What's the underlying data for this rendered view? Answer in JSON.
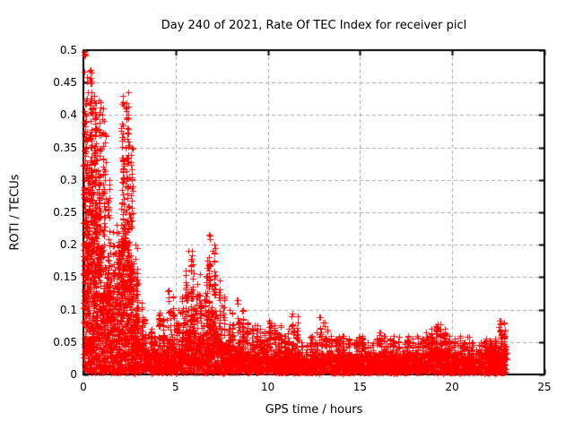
{
  "chart_data": {
    "type": "scatter",
    "title": "Day 240 of 2021, Rate Of TEC Index for receiver picl",
    "xlabel": "GPS time / hours",
    "ylabel": "ROTI / TECUs",
    "xlim": [
      0,
      25
    ],
    "ylim": [
      0,
      0.5
    ],
    "xticks": [
      0,
      5,
      10,
      15,
      20,
      25
    ],
    "yticks": [
      0,
      0.05,
      0.1,
      0.15,
      0.2,
      0.25,
      0.3,
      0.35,
      0.4,
      0.45,
      0.5
    ],
    "xtick_labels": [
      "0",
      "5",
      "10",
      "15",
      "20",
      "25"
    ],
    "ytick_labels": [
      "0",
      "0.05",
      "0.1",
      "0.15",
      "0.2",
      "0.25",
      "0.3",
      "0.35",
      "0.4",
      "0.45",
      "0.5"
    ],
    "grid": "dashed gray at every major tick",
    "legend": "none",
    "marker": "plus",
    "colors": {
      "marker": "#ff0000",
      "grid": "#a8a8a8",
      "axis": "#000000",
      "background": "#ffffff",
      "text": "#000000"
    },
    "data_start_hour": 0,
    "data_end_hour": 22.95,
    "envelope": {
      "note": "dense scatter summarized per 0.25 h bin: top of solid red band and max spike value (ROTI/TECUs)",
      "bin_width_hours": 0.25,
      "hours": [
        0,
        0.25,
        0.5,
        0.75,
        1,
        1.25,
        1.5,
        1.75,
        2,
        2.25,
        2.5,
        2.75,
        3,
        3.25,
        3.5,
        3.75,
        4,
        4.25,
        4.5,
        4.75,
        5,
        5.25,
        5.5,
        5.75,
        6,
        6.25,
        6.5,
        6.75,
        7,
        7.25,
        7.5,
        7.75,
        8,
        8.25,
        8.5,
        8.75,
        9,
        9.25,
        9.5,
        9.75,
        10,
        10.25,
        10.5,
        10.75,
        11,
        11.25,
        11.5,
        11.75,
        12,
        12.25,
        12.5,
        12.75,
        13,
        13.25,
        13.5,
        13.75,
        14,
        14.25,
        14.5,
        14.75,
        15,
        15.25,
        15.5,
        15.75,
        16,
        16.25,
        16.5,
        16.75,
        17,
        17.25,
        17.5,
        17.75,
        18,
        18.25,
        18.5,
        18.75,
        19,
        19.25,
        19.5,
        19.75,
        20,
        20.25,
        20.5,
        20.75,
        21,
        21.25,
        21.5,
        21.75,
        22,
        22.25,
        22.5,
        22.75
      ],
      "dense_band_top": [
        0.3,
        0.32,
        0.26,
        0.2,
        0.17,
        0.15,
        0.12,
        0.14,
        0.22,
        0.24,
        0.17,
        0.09,
        0.05,
        0.04,
        0.035,
        0.03,
        0.04,
        0.04,
        0.055,
        0.05,
        0.045,
        0.05,
        0.07,
        0.085,
        0.06,
        0.065,
        0.08,
        0.1,
        0.095,
        0.065,
        0.05,
        0.045,
        0.04,
        0.05,
        0.045,
        0.035,
        0.03,
        0.035,
        0.03,
        0.035,
        0.03,
        0.03,
        0.035,
        0.03,
        0.03,
        0.04,
        0.035,
        0.025,
        0.022,
        0.03,
        0.03,
        0.035,
        0.03,
        0.03,
        0.028,
        0.03,
        0.032,
        0.03,
        0.028,
        0.03,
        0.032,
        0.03,
        0.028,
        0.03,
        0.035,
        0.032,
        0.03,
        0.035,
        0.032,
        0.03,
        0.035,
        0.032,
        0.035,
        0.03,
        0.035,
        0.04,
        0.042,
        0.04,
        0.038,
        0.03,
        0.03,
        0.035,
        0.03,
        0.032,
        0.028,
        0.03,
        0.035,
        0.04,
        0.04,
        0.042,
        0.046,
        0.042
      ],
      "max": [
        0.497,
        0.47,
        0.43,
        0.42,
        0.41,
        0.3,
        0.22,
        0.23,
        0.42,
        0.435,
        0.35,
        0.2,
        0.11,
        0.085,
        0.07,
        0.06,
        0.095,
        0.085,
        0.13,
        0.12,
        0.1,
        0.12,
        0.16,
        0.19,
        0.14,
        0.155,
        0.175,
        0.215,
        0.2,
        0.145,
        0.12,
        0.1,
        0.095,
        0.115,
        0.1,
        0.08,
        0.07,
        0.076,
        0.07,
        0.066,
        0.08,
        0.076,
        0.073,
        0.06,
        0.07,
        0.094,
        0.09,
        0.05,
        0.045,
        0.06,
        0.065,
        0.088,
        0.08,
        0.06,
        0.055,
        0.058,
        0.06,
        0.055,
        0.05,
        0.058,
        0.06,
        0.05,
        0.048,
        0.055,
        0.065,
        0.06,
        0.055,
        0.06,
        0.058,
        0.05,
        0.06,
        0.055,
        0.06,
        0.055,
        0.065,
        0.07,
        0.075,
        0.078,
        0.07,
        0.06,
        0.055,
        0.06,
        0.05,
        0.058,
        0.05,
        0.045,
        0.05,
        0.055,
        0.052,
        0.055,
        0.083,
        0.08
      ]
    },
    "notable_peaks": [
      {
        "hour": 0.08,
        "roti": 0.494
      },
      {
        "hour": 0.25,
        "roti": 0.435
      },
      {
        "hour": 0.33,
        "roti": 0.468
      },
      {
        "hour": 0.36,
        "roti": 0.455
      },
      {
        "hour": 0.55,
        "roti": 0.41
      },
      {
        "hour": 0.81,
        "roti": 0.423
      },
      {
        "hour": 1.0,
        "roti": 0.4
      },
      {
        "hour": 2.1,
        "roti": 0.366
      },
      {
        "hour": 2.15,
        "roti": 0.43
      },
      {
        "hour": 2.18,
        "roti": 0.415
      },
      {
        "hour": 2.3,
        "roti": 0.35
      },
      {
        "hour": 4.6,
        "roti": 0.128
      },
      {
        "hour": 5.7,
        "roti": 0.19
      },
      {
        "hour": 6.88,
        "roti": 0.214
      },
      {
        "hour": 7.0,
        "roti": 0.19
      },
      {
        "hour": 8.33,
        "roti": 0.115
      },
      {
        "hour": 9.3,
        "roti": 0.076
      },
      {
        "hour": 10.05,
        "roti": 0.083
      },
      {
        "hour": 10.7,
        "roti": 0.076
      },
      {
        "hour": 11.35,
        "roti": 0.094
      },
      {
        "hour": 12.8,
        "roti": 0.088
      },
      {
        "hour": 13.0,
        "roti": 0.08
      },
      {
        "hour": 16.1,
        "roti": 0.065
      },
      {
        "hour": 19.2,
        "roti": 0.078
      },
      {
        "hour": 20.8,
        "roti": 0.058
      },
      {
        "hour": 22.55,
        "roti": 0.083
      },
      {
        "hour": 22.6,
        "roti": 0.078
      }
    ]
  }
}
